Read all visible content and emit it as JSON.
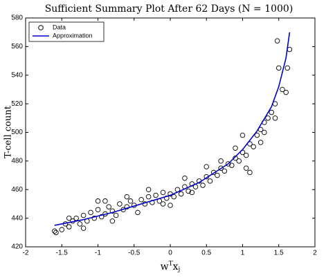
{
  "chart_data": {
    "type": "scatter",
    "title": "Sufficient Summary Plot After 62 Days (N = 1000)",
    "xlabel": [
      "w",
      "T",
      "x",
      "j"
    ],
    "ylabel": "T-cell count",
    "xlim": [
      -2,
      2
    ],
    "xticks": [
      -2,
      -1.5,
      -1,
      -0.5,
      0,
      0.5,
      1,
      1.5,
      2
    ],
    "ylim": [
      420,
      580
    ],
    "yticks": [
      420,
      440,
      460,
      480,
      500,
      520,
      540,
      560,
      580
    ],
    "legend": "top-left",
    "series": [
      {
        "name": "Data",
        "style": "markers",
        "color": "#000000",
        "x": [
          -1.6,
          -1.58,
          -1.5,
          -1.45,
          -1.4,
          -1.35,
          -1.3,
          -1.25,
          -1.2,
          -1.15,
          -1.1,
          -1.05,
          -1.0,
          -0.95,
          -0.9,
          -0.85,
          -0.8,
          -0.75,
          -0.7,
          -0.65,
          -0.6,
          -0.55,
          -0.5,
          -0.45,
          -0.4,
          -0.35,
          -0.3,
          -0.25,
          -0.2,
          -0.15,
          -0.1,
          -0.05,
          0,
          0.05,
          0.1,
          0.15,
          0.2,
          0.25,
          0.3,
          0.35,
          0.4,
          0.45,
          0.5,
          0.55,
          0.6,
          0.65,
          0.7,
          0.75,
          0.8,
          0.85,
          0.9,
          0.95,
          1.0,
          1.05,
          1.1,
          1.15,
          1.2,
          1.25,
          1.3,
          1.35,
          1.4,
          1.45,
          1.5,
          1.48,
          1.55,
          1.6,
          1.62,
          1.65,
          1.1,
          1.05,
          0.0,
          -0.8,
          -1.2,
          1.0,
          0.5,
          -0.3,
          0.2,
          -1.0,
          1.45,
          1.3,
          -0.6,
          -0.9,
          0.7,
          0.9,
          1.25,
          -1.4,
          0.3,
          -0.1
        ],
        "values": [
          431,
          430,
          432,
          436,
          434,
          438,
          440,
          436,
          442,
          438,
          444,
          440,
          446,
          441,
          443,
          448,
          445,
          442,
          450,
          446,
          448,
          452,
          449,
          444,
          453,
          450,
          455,
          451,
          456,
          452,
          458,
          454,
          457,
          455,
          460,
          457,
          462,
          459,
          464,
          462,
          466,
          463,
          469,
          466,
          472,
          470,
          475,
          473,
          478,
          477,
          482,
          480,
          486,
          484,
          492,
          490,
          498,
          502,
          507,
          510,
          514,
          520,
          545,
          564,
          530,
          528,
          545,
          558,
          472,
          475,
          449,
          438,
          433,
          498,
          476,
          460,
          468,
          452,
          510,
          500,
          455,
          452,
          480,
          489,
          493,
          440,
          458,
          450
        ]
      },
      {
        "name": "Approximation",
        "style": "line",
        "color": "#0000cc",
        "x": [
          -1.6,
          -1.2,
          -0.8,
          -0.4,
          0,
          0.4,
          0.8,
          1.0,
          1.2,
          1.4,
          1.5,
          1.6,
          1.65
        ],
        "values": [
          435,
          439,
          444,
          450,
          456,
          465,
          478,
          488,
          501,
          518,
          532,
          552,
          570
        ]
      }
    ]
  }
}
